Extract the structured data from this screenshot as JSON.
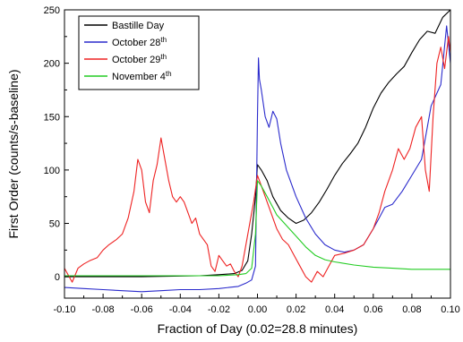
{
  "chart_data": {
    "type": "line",
    "xlabel": "Fraction of Day (0.02=28.8 minutes)",
    "ylabel": "First Order (counts/s-baseline)",
    "xlim": [
      -0.1,
      0.1
    ],
    "ylim": [
      -20,
      250
    ],
    "xticks": [
      -0.1,
      -0.08,
      -0.06,
      -0.04,
      -0.02,
      0.0,
      0.02,
      0.04,
      0.06,
      0.08,
      0.1
    ],
    "xtick_labels": [
      "-0.10",
      "-0.08",
      "-0.06",
      "-0.04",
      "-0.02",
      "0.00",
      "0.02",
      "0.04",
      "0.06",
      "0.08",
      "0.10"
    ],
    "yticks": [
      0,
      50,
      100,
      150,
      200,
      250
    ],
    "ytick_labels": [
      "0",
      "50",
      "100",
      "150",
      "200",
      "250"
    ],
    "grid": false,
    "legend_position": "top-left",
    "series": [
      {
        "name": "Bastille Day",
        "sup": "",
        "color": "#000000",
        "x": [
          -0.1,
          -0.06,
          -0.03,
          -0.02,
          -0.012,
          -0.008,
          -0.005,
          -0.003,
          -0.001,
          0.0,
          0.002,
          0.005,
          0.008,
          0.012,
          0.016,
          0.02,
          0.024,
          0.028,
          0.032,
          0.036,
          0.04,
          0.044,
          0.048,
          0.052,
          0.056,
          0.06,
          0.064,
          0.068,
          0.072,
          0.076,
          0.08,
          0.084,
          0.088,
          0.092,
          0.096,
          0.1
        ],
        "y": [
          0,
          0,
          1,
          2,
          3,
          6,
          15,
          40,
          75,
          105,
          100,
          90,
          75,
          62,
          55,
          50,
          53,
          60,
          70,
          82,
          95,
          106,
          115,
          125,
          140,
          158,
          172,
          182,
          190,
          197,
          210,
          222,
          230,
          228,
          243,
          250
        ]
      },
      {
        "name": "October 28",
        "sup": "th",
        "color": "#2a2acc",
        "x": [
          -0.1,
          -0.09,
          -0.08,
          -0.07,
          -0.06,
          -0.05,
          -0.04,
          -0.03,
          -0.02,
          -0.01,
          -0.006,
          -0.003,
          -0.001,
          0.0,
          0.0005,
          0.001,
          0.002,
          0.004,
          0.006,
          0.008,
          0.01,
          0.012,
          0.015,
          0.02,
          0.025,
          0.03,
          0.035,
          0.04,
          0.045,
          0.05,
          0.055,
          0.06,
          0.063,
          0.066,
          0.07,
          0.075,
          0.08,
          0.085,
          0.09,
          0.095,
          0.098,
          0.1
        ],
        "y": [
          -10,
          -11,
          -12,
          -13,
          -14,
          -13,
          -12,
          -12,
          -11,
          -9,
          -6,
          -3,
          10,
          150,
          205,
          185,
          175,
          150,
          140,
          155,
          148,
          125,
          100,
          75,
          55,
          40,
          30,
          25,
          23,
          25,
          30,
          45,
          55,
          65,
          68,
          80,
          95,
          110,
          160,
          180,
          235,
          200
        ]
      },
      {
        "name": "October 29",
        "sup": "th",
        "color": "#ee2222",
        "x": [
          -0.1,
          -0.096,
          -0.093,
          -0.09,
          -0.087,
          -0.083,
          -0.08,
          -0.077,
          -0.073,
          -0.07,
          -0.067,
          -0.064,
          -0.062,
          -0.06,
          -0.058,
          -0.056,
          -0.054,
          -0.052,
          -0.05,
          -0.048,
          -0.046,
          -0.044,
          -0.042,
          -0.04,
          -0.038,
          -0.036,
          -0.034,
          -0.032,
          -0.03,
          -0.028,
          -0.026,
          -0.024,
          -0.022,
          -0.02,
          -0.018,
          -0.016,
          -0.014,
          -0.012,
          -0.01,
          -0.008,
          -0.006,
          -0.004,
          -0.002,
          0.0,
          0.001,
          0.003,
          0.005,
          0.007,
          0.01,
          0.013,
          0.016,
          0.019,
          0.022,
          0.025,
          0.028,
          0.031,
          0.034,
          0.037,
          0.04,
          0.045,
          0.05,
          0.055,
          0.06,
          0.063,
          0.066,
          0.07,
          0.073,
          0.076,
          0.079,
          0.082,
          0.085,
          0.087,
          0.089,
          0.091,
          0.093,
          0.095,
          0.097,
          0.099,
          0.1
        ],
        "y": [
          8,
          -5,
          8,
          12,
          15,
          18,
          25,
          30,
          35,
          40,
          55,
          80,
          110,
          100,
          70,
          60,
          90,
          105,
          130,
          110,
          90,
          75,
          70,
          75,
          70,
          60,
          50,
          55,
          40,
          35,
          30,
          10,
          5,
          20,
          15,
          10,
          12,
          5,
          0,
          10,
          30,
          50,
          70,
          95,
          90,
          80,
          70,
          60,
          45,
          35,
          30,
          20,
          10,
          0,
          -5,
          5,
          0,
          10,
          20,
          22,
          25,
          30,
          45,
          60,
          80,
          100,
          120,
          110,
          120,
          140,
          150,
          100,
          80,
          150,
          200,
          215,
          195,
          225,
          210
        ]
      },
      {
        "name": "November 4",
        "sup": "th",
        "color": "#22cc22",
        "x": [
          -0.1,
          -0.08,
          -0.06,
          -0.04,
          -0.02,
          -0.01,
          -0.006,
          -0.003,
          -0.001,
          0.0,
          0.002,
          0.005,
          0.008,
          0.01,
          0.015,
          0.02,
          0.025,
          0.03,
          0.035,
          0.04,
          0.05,
          0.06,
          0.07,
          0.08,
          0.09,
          0.1
        ],
        "y": [
          1,
          1,
          1,
          1,
          1,
          2,
          3,
          8,
          40,
          90,
          85,
          75,
          65,
          58,
          48,
          38,
          28,
          20,
          16,
          14,
          11,
          9,
          8,
          7,
          7,
          7
        ]
      }
    ]
  }
}
